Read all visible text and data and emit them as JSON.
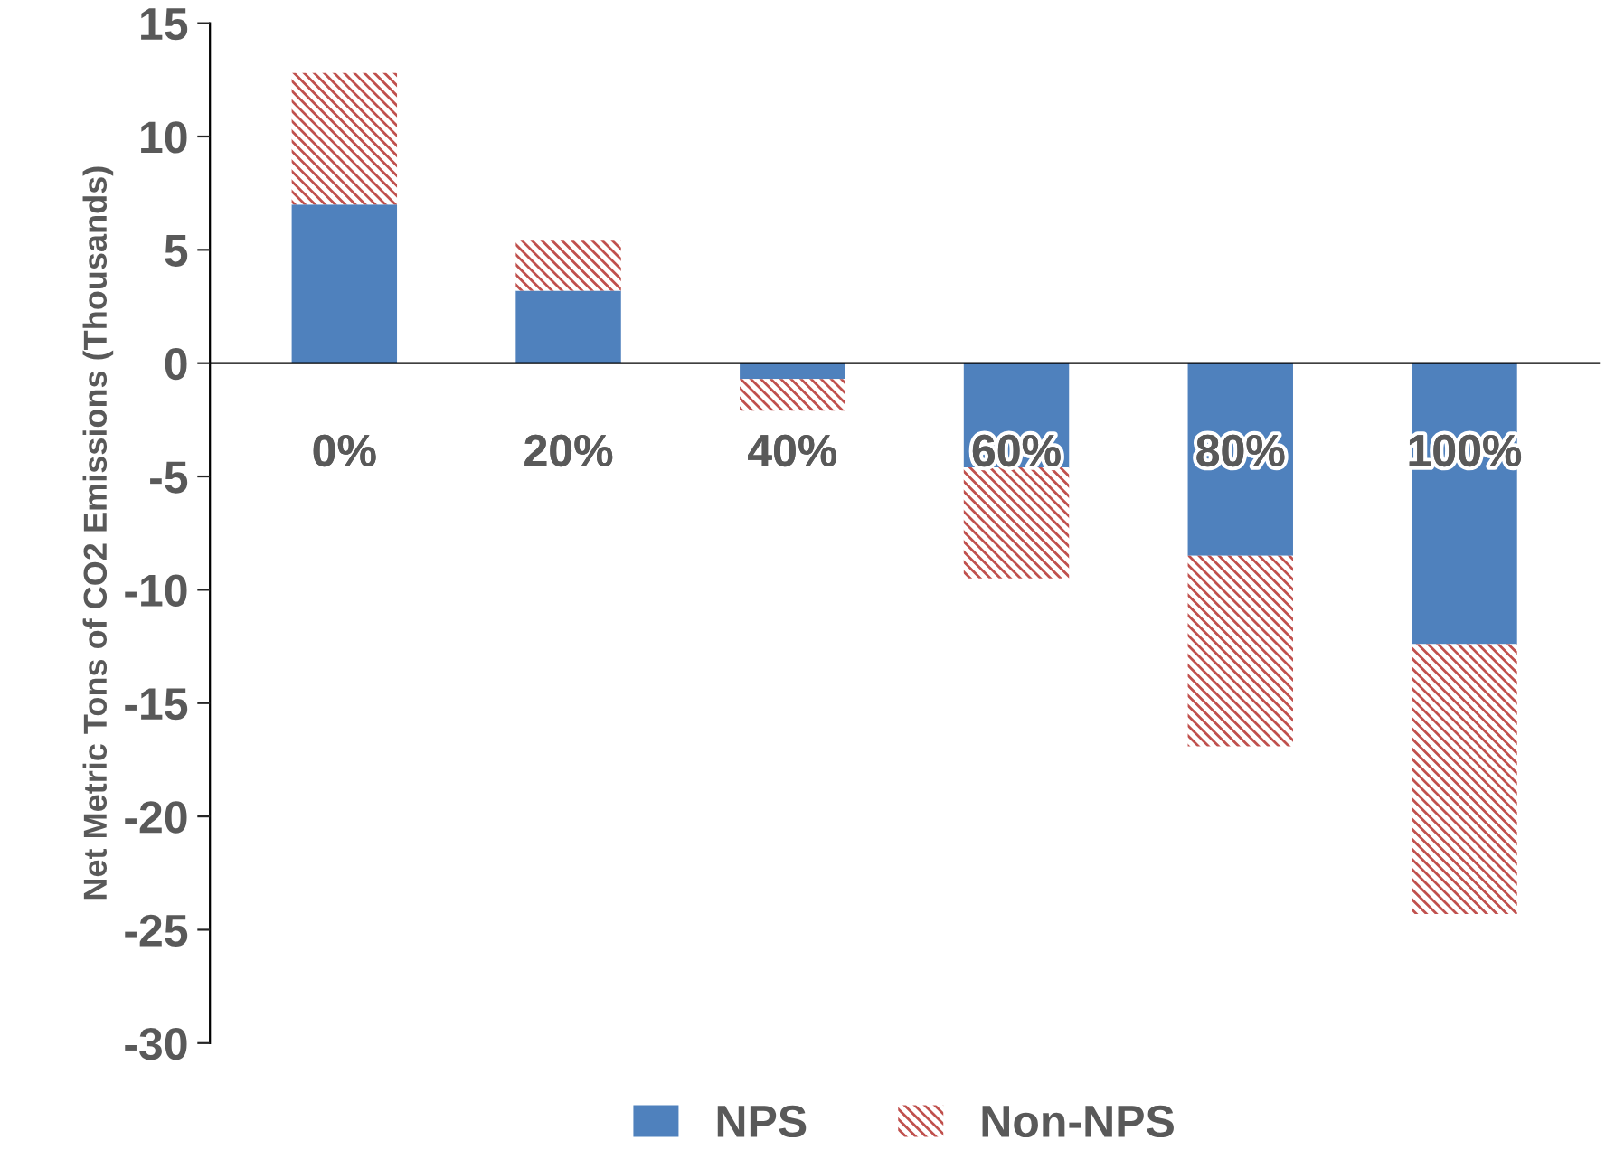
{
  "chart_data": {
    "type": "bar",
    "stacked": true,
    "ylabel": "Net Metric Tons of CO2 Emissions (Thousands)",
    "categories": [
      "0%",
      "20%",
      "40%",
      "60%",
      "80%",
      "100%"
    ],
    "series": [
      {
        "name": "NPS",
        "color": "#4f81bd",
        "values": [
          7.0,
          3.2,
          -0.7,
          -4.6,
          -8.5,
          -12.4
        ]
      },
      {
        "name": "Non-NPS",
        "color": "#c0504d",
        "values": [
          5.8,
          2.2,
          -1.4,
          -4.9,
          -8.4,
          -11.9
        ]
      }
    ],
    "ylim": [
      -30,
      15
    ],
    "yticks": [
      -30,
      -25,
      -20,
      -15,
      -10,
      -5,
      0,
      5,
      10,
      15
    ],
    "grid": false,
    "legend": "bottom"
  }
}
